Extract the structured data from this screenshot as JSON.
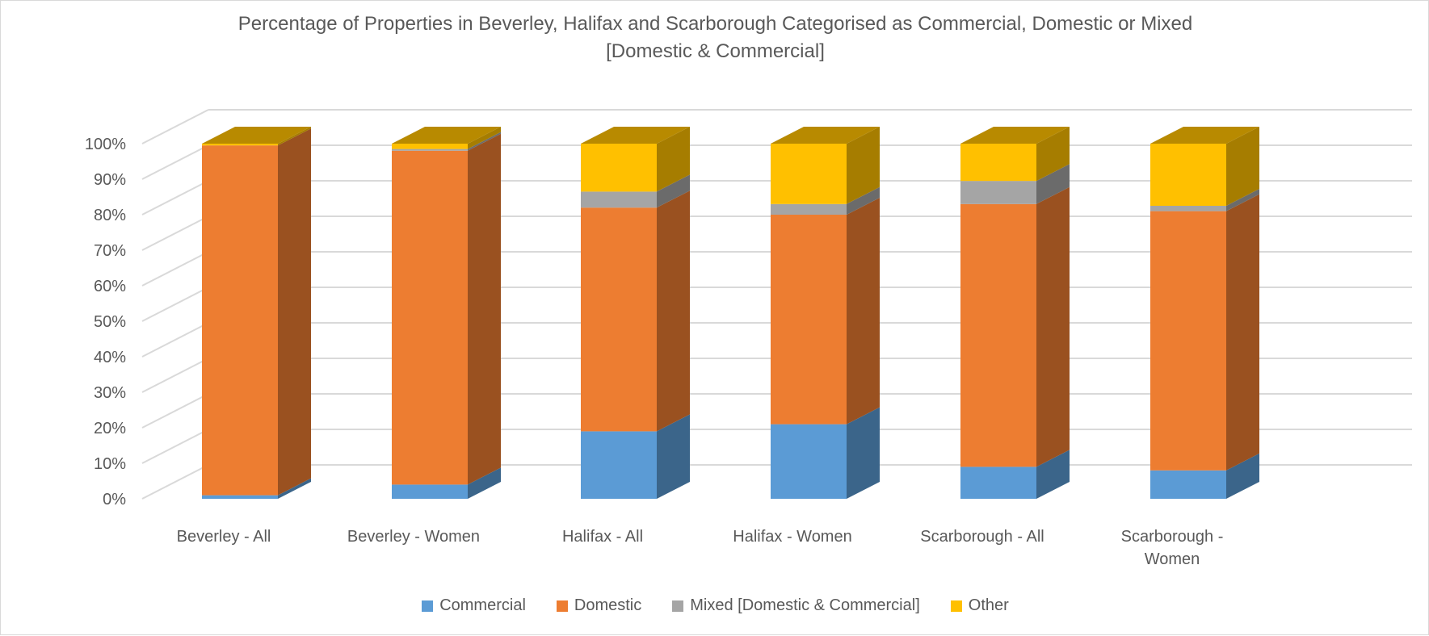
{
  "chart_data": {
    "type": "bar",
    "stacked": true,
    "percent": true,
    "three_d": true,
    "title_lines": [
      "Percentage of Properties in Beverley, Halifax and Scarborough Categorised as Commercial, Domestic or Mixed",
      "[Domestic & Commercial]"
    ],
    "categories": [
      [
        "Beverley - All"
      ],
      [
        "Beverley - Women"
      ],
      [
        "Halifax - All"
      ],
      [
        "Halifax - Women"
      ],
      [
        "Scarborough - All"
      ],
      [
        "Scarborough -",
        "Women"
      ]
    ],
    "series": [
      {
        "name": "Commercial",
        "color": "#5B9BD5",
        "values": [
          1,
          4,
          19,
          21,
          9,
          8
        ]
      },
      {
        "name": "Domestic",
        "color": "#ED7D31",
        "values": [
          98.5,
          94,
          63,
          59,
          74,
          73
        ]
      },
      {
        "name": "Mixed [Domestic & Commercial]",
        "color": "#A5A5A5",
        "values": [
          0,
          0.5,
          4.5,
          3,
          6.5,
          1.5
        ]
      },
      {
        "name": "Other",
        "color": "#FFC000",
        "values": [
          0.5,
          1.5,
          13.5,
          17,
          10.5,
          17.5
        ]
      }
    ],
    "ylim": [
      0,
      100
    ],
    "yticks": [
      "0%",
      "10%",
      "20%",
      "30%",
      "40%",
      "50%",
      "60%",
      "70%",
      "80%",
      "90%",
      "100%"
    ],
    "grid": true,
    "legend_position": "bottom"
  }
}
